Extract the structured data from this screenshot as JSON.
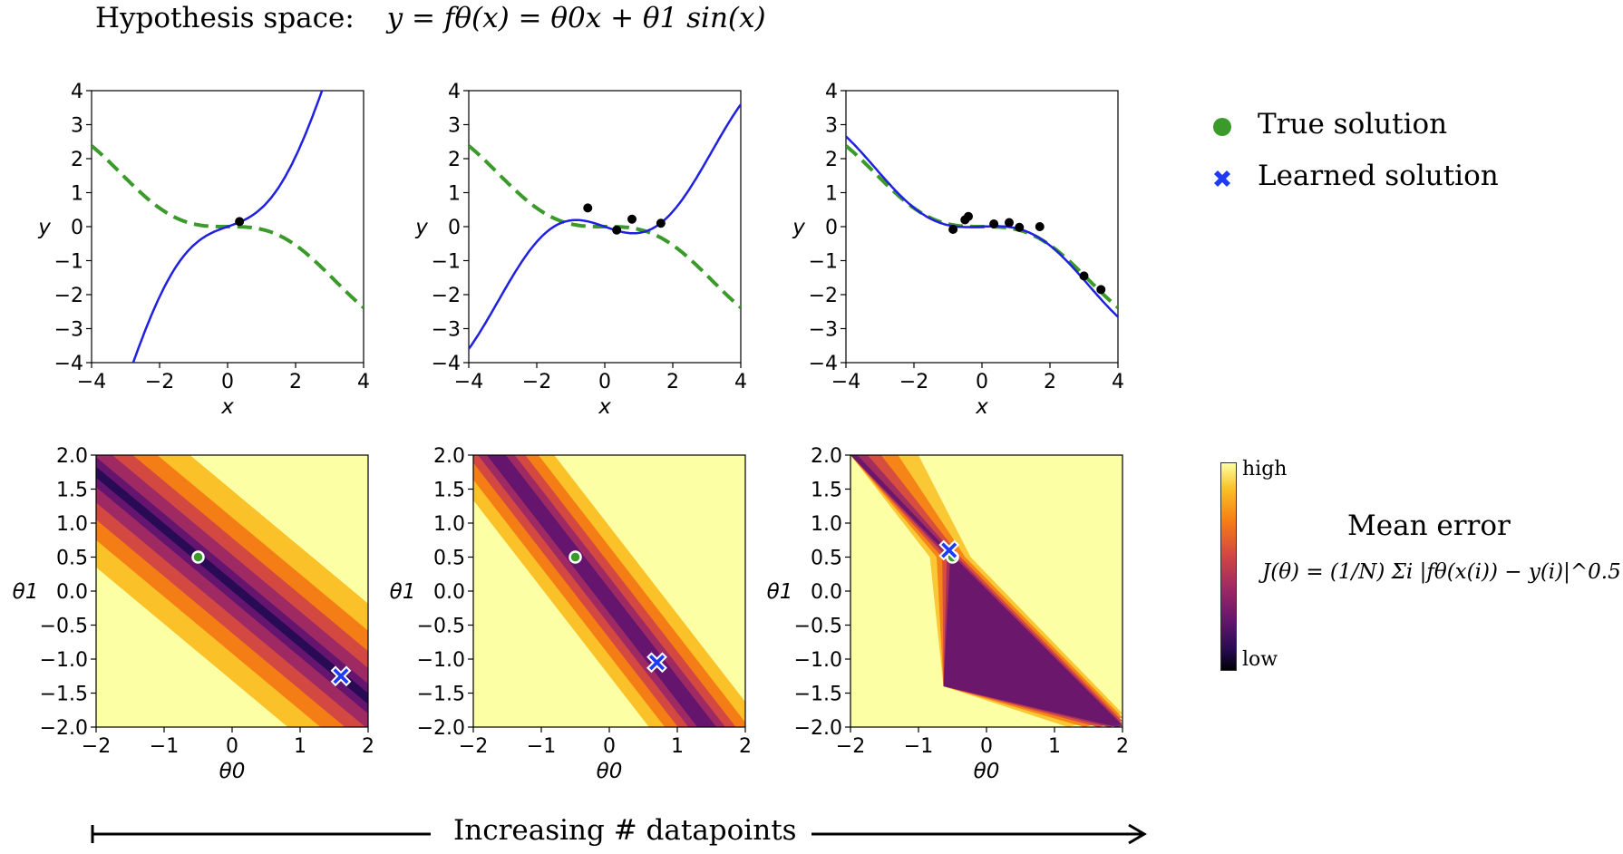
{
  "header": {
    "title_prefix": "Hypothesis space:",
    "equation": "y = fθ(x) = θ0x + θ1 sin(x)"
  },
  "legend": {
    "true_label": "True solution",
    "true_color": "#3a9a2a",
    "learned_label": "Learned solution",
    "learned_color": "#1f3cf5"
  },
  "colorbar": {
    "high_label": "high",
    "low_label": "low",
    "colormap": "inferno"
  },
  "mean_error": {
    "title": "Mean error",
    "formula": "J(θ) = (1/N) Σi |fθ(x(i)) − y(i)|^0.5"
  },
  "bottom_label": "Increasing # datapoints",
  "chart_data": [
    {
      "type": "line",
      "panel": "top-1",
      "xlabel": "x",
      "ylabel": "y",
      "xlim": [
        -4,
        4
      ],
      "ylim": [
        -4,
        4
      ],
      "xticks": [
        "−4",
        "−2",
        "0",
        "2",
        "4"
      ],
      "yticks": [
        "4",
        "3",
        "2",
        "1",
        "0",
        "−1",
        "−2",
        "−3",
        "−4"
      ],
      "true_theta": [
        -0.5,
        0.5
      ],
      "learned_theta": [
        1.6,
        -1.25
      ],
      "points": [
        [
          0.35,
          0.15
        ]
      ]
    },
    {
      "type": "line",
      "panel": "top-2",
      "xlabel": "x",
      "ylabel": "y",
      "xlim": [
        -4,
        4
      ],
      "ylim": [
        -4,
        4
      ],
      "xticks": [
        "−4",
        "−2",
        "0",
        "2",
        "4"
      ],
      "yticks": [
        "4",
        "3",
        "2",
        "1",
        "0",
        "−1",
        "−2",
        "−3",
        "−4"
      ],
      "true_theta": [
        -0.5,
        0.5
      ],
      "learned_theta": [
        0.7,
        -1.05
      ],
      "points": [
        [
          -0.5,
          0.55
        ],
        [
          0.35,
          -0.1
        ],
        [
          0.8,
          0.22
        ],
        [
          1.65,
          0.1
        ]
      ]
    },
    {
      "type": "line",
      "panel": "top-3",
      "xlabel": "x",
      "ylabel": "y",
      "xlim": [
        -4,
        4
      ],
      "ylim": [
        -4,
        4
      ],
      "xticks": [
        "−4",
        "−2",
        "0",
        "2",
        "4"
      ],
      "yticks": [
        "4",
        "3",
        "2",
        "1",
        "0",
        "−1",
        "−2",
        "−3",
        "−4"
      ],
      "true_theta": [
        -0.5,
        0.5
      ],
      "learned_theta": [
        -0.55,
        0.6
      ],
      "points": [
        [
          -0.85,
          -0.08
        ],
        [
          -0.5,
          0.2
        ],
        [
          -0.4,
          0.3
        ],
        [
          0.35,
          0.08
        ],
        [
          0.8,
          0.12
        ],
        [
          1.1,
          -0.02
        ],
        [
          1.7,
          0.0
        ],
        [
          3.0,
          -1.45
        ],
        [
          3.5,
          -1.85
        ]
      ]
    },
    {
      "type": "heatmap",
      "panel": "bottom-1",
      "xlabel": "θ0",
      "ylabel": "θ1",
      "xlim": [
        -2,
        2
      ],
      "ylim": [
        -2,
        2
      ],
      "xticks": [
        "−2",
        "−1",
        "0",
        "1",
        "2"
      ],
      "yticks": [
        "2.0",
        "1.5",
        "1.0",
        "0.5",
        "0.0",
        "−0.5",
        "−1.0",
        "−1.5",
        "−2.0"
      ],
      "true_point": [
        -0.5,
        0.5
      ],
      "learned_point": [
        1.6,
        -1.25
      ]
    },
    {
      "type": "heatmap",
      "panel": "bottom-2",
      "xlabel": "θ0",
      "ylabel": "θ1",
      "xlim": [
        -2,
        2
      ],
      "ylim": [
        -2,
        2
      ],
      "xticks": [
        "−2",
        "−1",
        "0",
        "1",
        "2"
      ],
      "yticks": [
        "2.0",
        "1.5",
        "1.0",
        "0.5",
        "0.0",
        "−0.5",
        "−1.0",
        "−1.5",
        "−2.0"
      ],
      "true_point": [
        -0.5,
        0.5
      ],
      "learned_point": [
        0.7,
        -1.05
      ]
    },
    {
      "type": "heatmap",
      "panel": "bottom-3",
      "xlabel": "θ0",
      "ylabel": "θ1",
      "xlim": [
        -2,
        2
      ],
      "ylim": [
        -2,
        2
      ],
      "xticks": [
        "−2",
        "−1",
        "0",
        "1",
        "2"
      ],
      "yticks": [
        "2.0",
        "1.5",
        "1.0",
        "0.5",
        "0.0",
        "−0.5",
        "−1.0",
        "−1.5",
        "−2.0"
      ],
      "true_point": [
        -0.5,
        0.5
      ],
      "learned_point": [
        -0.55,
        0.6
      ]
    }
  ]
}
